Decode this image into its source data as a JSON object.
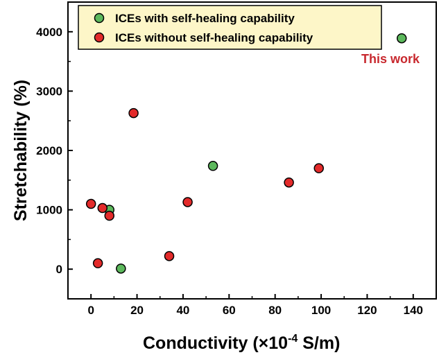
{
  "colors": {
    "with_self_healing": "#5cb85c",
    "without_self_healing": "#e32a2a",
    "legend_background": "#fdf6c8",
    "annotation": "#c8282e"
  },
  "chart_data": {
    "type": "scatter",
    "xlabel_main": "Conductivity (×10",
    "xlabel_sup": "-4",
    "xlabel_unit": " S/m)",
    "ylabel": "Stretchability (%)",
    "xlim": [
      -10,
      150
    ],
    "ylim": [
      -500,
      4500
    ],
    "x_ticks": [
      0,
      20,
      40,
      60,
      80,
      100,
      120,
      140
    ],
    "y_ticks": [
      0,
      1000,
      2000,
      3000,
      4000
    ],
    "grid": false,
    "legend_position": "top-left",
    "series": [
      {
        "name": "ICEs with self-healing capability",
        "color_key": "with_self_healing",
        "points": [
          {
            "x": 8,
            "y": 1000
          },
          {
            "x": 13,
            "y": 10
          },
          {
            "x": 53,
            "y": 1740
          },
          {
            "x": 135,
            "y": 3890
          }
        ]
      },
      {
        "name": "ICEs without self-healing capability",
        "color_key": "without_self_healing",
        "points": [
          {
            "x": 0,
            "y": 1100
          },
          {
            "x": 5,
            "y": 1030
          },
          {
            "x": 8,
            "y": 900
          },
          {
            "x": 3,
            "y": 100
          },
          {
            "x": 18.5,
            "y": 2630
          },
          {
            "x": 34,
            "y": 220
          },
          {
            "x": 42,
            "y": 1130
          },
          {
            "x": 86,
            "y": 1460
          },
          {
            "x": 99,
            "y": 1700
          }
        ]
      }
    ],
    "annotations": [
      {
        "text": "This work",
        "x": 135,
        "y": 3890
      }
    ]
  }
}
